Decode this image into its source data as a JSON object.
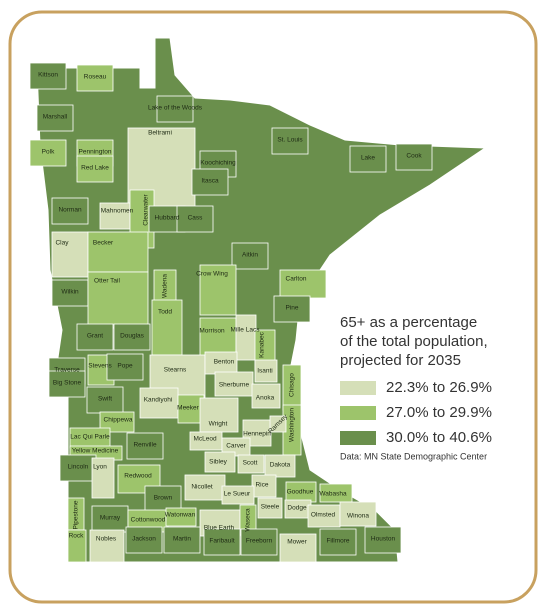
{
  "map": {
    "title": [
      "65+ as a percentage",
      "of the total population,",
      "projected for 2035"
    ],
    "legend": [
      {
        "label": "22.3% to 26.9%",
        "color": "#d5dfb8"
      },
      {
        "label": "27.0% to 29.9%",
        "color": "#9dc46b"
      },
      {
        "label": "30.0% to 40.6%",
        "color": "#6a8f4c"
      }
    ],
    "source": "Data: MN State Demographic Center",
    "counties": [
      {
        "name": "Kittson",
        "group": 2
      },
      {
        "name": "Roseau",
        "group": 1
      },
      {
        "name": "Lake of the Woods",
        "group": 2
      },
      {
        "name": "Marshall",
        "group": 2
      },
      {
        "name": "Beltrami",
        "group": 0
      },
      {
        "name": "Polk",
        "group": 1
      },
      {
        "name": "Pennington",
        "group": 1
      },
      {
        "name": "Red Lake",
        "group": 1
      },
      {
        "name": "Koochiching",
        "group": 2
      },
      {
        "name": "St. Louis",
        "group": 2
      },
      {
        "name": "Lake",
        "group": 2
      },
      {
        "name": "Cook",
        "group": 2
      },
      {
        "name": "Itasca",
        "group": 2
      },
      {
        "name": "Norman",
        "group": 2
      },
      {
        "name": "Mahnomen",
        "group": 0
      },
      {
        "name": "Clearwater",
        "group": 1
      },
      {
        "name": "Hubbard",
        "group": 2
      },
      {
        "name": "Cass",
        "group": 2
      },
      {
        "name": "Clay",
        "group": 0
      },
      {
        "name": "Becker",
        "group": 1
      },
      {
        "name": "Aitkin",
        "group": 2
      },
      {
        "name": "Crow Wing",
        "group": 1
      },
      {
        "name": "Carlton",
        "group": 1
      },
      {
        "name": "Wilkin",
        "group": 2
      },
      {
        "name": "Otter Tail",
        "group": 1
      },
      {
        "name": "Wadena",
        "group": 1
      },
      {
        "name": "Pine",
        "group": 2
      },
      {
        "name": "Todd",
        "group": 1
      },
      {
        "name": "Morrison",
        "group": 1
      },
      {
        "name": "Mille Lacs",
        "group": 0
      },
      {
        "name": "Kanabec",
        "group": 1
      },
      {
        "name": "Grant",
        "group": 2
      },
      {
        "name": "Douglas",
        "group": 2
      },
      {
        "name": "Traverse",
        "group": 2
      },
      {
        "name": "Stevens",
        "group": 1
      },
      {
        "name": "Pope",
        "group": 2
      },
      {
        "name": "Stearns",
        "group": 0
      },
      {
        "name": "Benton",
        "group": 0
      },
      {
        "name": "Isanti",
        "group": 0
      },
      {
        "name": "Chisago",
        "group": 1
      },
      {
        "name": "Big Stone",
        "group": 2
      },
      {
        "name": "Sherburne",
        "group": 0
      },
      {
        "name": "Anoka",
        "group": 0
      },
      {
        "name": "Swift",
        "group": 2
      },
      {
        "name": "Kandiyohi",
        "group": 0
      },
      {
        "name": "Meeker",
        "group": 1
      },
      {
        "name": "Wright",
        "group": 0
      },
      {
        "name": "Washington",
        "group": 1
      },
      {
        "name": "Chippewa",
        "group": 1
      },
      {
        "name": "Hennepin",
        "group": 0
      },
      {
        "name": "Ramsey",
        "group": 0
      },
      {
        "name": "Lac Qui Parle",
        "group": 1
      },
      {
        "name": "McLeod",
        "group": 0
      },
      {
        "name": "Carver",
        "group": 0
      },
      {
        "name": "Yellow Medicine",
        "group": 1
      },
      {
        "name": "Renville",
        "group": 2
      },
      {
        "name": "Sibley",
        "group": 0
      },
      {
        "name": "Scott",
        "group": 0
      },
      {
        "name": "Dakota",
        "group": 0
      },
      {
        "name": "Lincoln",
        "group": 2
      },
      {
        "name": "Lyon",
        "group": 0
      },
      {
        "name": "Redwood",
        "group": 1
      },
      {
        "name": "Nicollet",
        "group": 0
      },
      {
        "name": "Rice",
        "group": 0
      },
      {
        "name": "Goodhue",
        "group": 1
      },
      {
        "name": "Wabasha",
        "group": 1
      },
      {
        "name": "Le Sueur",
        "group": 0
      },
      {
        "name": "Brown",
        "group": 2
      },
      {
        "name": "Pipestone",
        "group": 1
      },
      {
        "name": "Murray",
        "group": 2
      },
      {
        "name": "Cottonwood",
        "group": 1
      },
      {
        "name": "Watonwan",
        "group": 1
      },
      {
        "name": "Blue Earth",
        "group": 0
      },
      {
        "name": "Waseca",
        "group": 1
      },
      {
        "name": "Steele",
        "group": 0
      },
      {
        "name": "Dodge",
        "group": 0
      },
      {
        "name": "Olmsted",
        "group": 0
      },
      {
        "name": "Winona",
        "group": 0
      },
      {
        "name": "Rock",
        "group": 1
      },
      {
        "name": "Nobles",
        "group": 0
      },
      {
        "name": "Jackson",
        "group": 2
      },
      {
        "name": "Martin",
        "group": 2
      },
      {
        "name": "Faribault",
        "group": 2
      },
      {
        "name": "Freeborn",
        "group": 2
      },
      {
        "name": "Mower",
        "group": 0
      },
      {
        "name": "Fillmore",
        "group": 2
      },
      {
        "name": "Houston",
        "group": 2
      }
    ]
  }
}
